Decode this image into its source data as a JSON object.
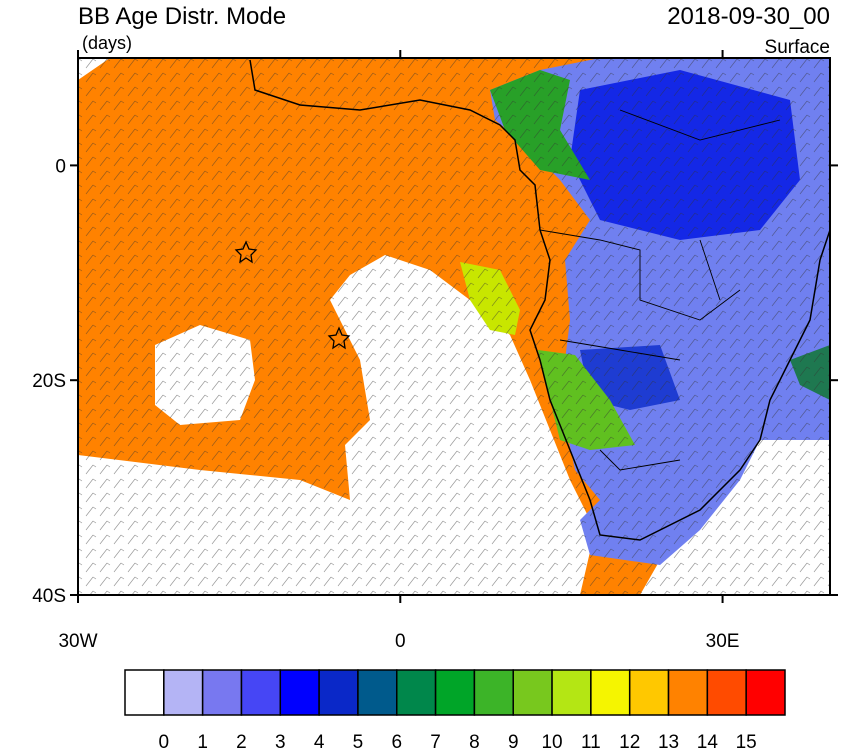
{
  "header": {
    "title": "BB Age Distr. Mode",
    "units": "(days)",
    "date": "2018-09-30_00",
    "level": "Surface"
  },
  "map": {
    "lon_range": [
      -30,
      40
    ],
    "lat_range": [
      -40,
      10
    ],
    "lat_ticks": [
      {
        "value": 0,
        "label": "0"
      },
      {
        "value": -20,
        "label": "20S"
      },
      {
        "value": -40,
        "label": "40S"
      }
    ],
    "lon_ticks": [
      {
        "value": -30,
        "label": "30W"
      },
      {
        "value": 0,
        "label": "0"
      },
      {
        "value": 30,
        "label": "30E"
      }
    ]
  },
  "colorbar": {
    "colors": [
      "#ffffff",
      "#b4b4f5",
      "#7878f0",
      "#4646f5",
      "#0000ff",
      "#0a28c8",
      "#005a8c",
      "#00874b",
      "#00a528",
      "#3cb428",
      "#78c81e",
      "#b4e614",
      "#f5f500",
      "#ffc800",
      "#ff8200",
      "#ff4b00",
      "#ff0000"
    ],
    "labels": [
      0,
      1,
      2,
      3,
      4,
      5,
      6,
      7,
      8,
      9,
      10,
      11,
      12,
      13,
      14,
      15
    ]
  }
}
